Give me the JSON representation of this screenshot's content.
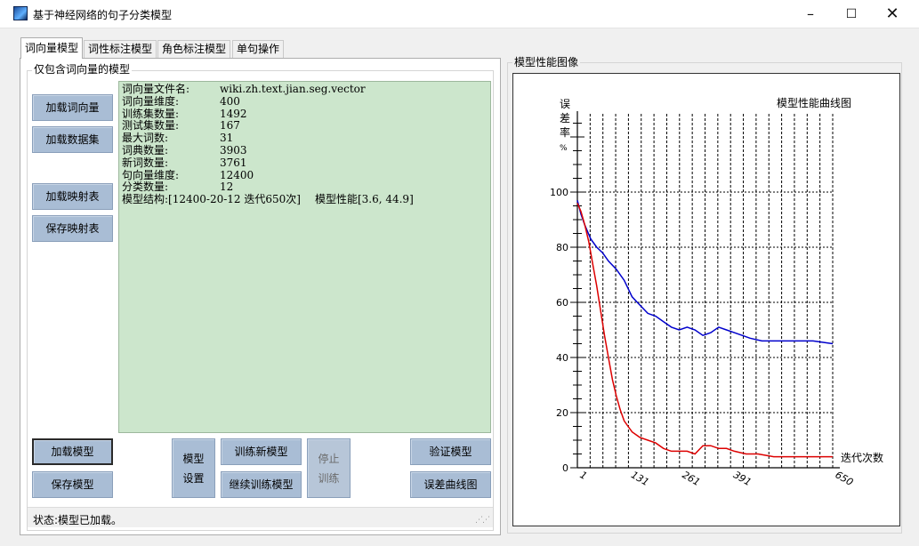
{
  "window": {
    "title": "基于神经网络的句子分类模型"
  },
  "tabs": [
    "词向量模型",
    "词性标注模型",
    "角色标注模型",
    "单句操作"
  ],
  "group": {
    "label": "仅包含词向量的模型"
  },
  "left_buttons": {
    "load_vectors": "加载词向量",
    "load_dataset": "加载数据集",
    "load_map": "加载映射表",
    "save_map": "保存映射表"
  },
  "info": {
    "rows": [
      {
        "k": "词向量文件名:",
        "v": "wiki.zh.text.jian.seg.vector"
      },
      {
        "k": "词向量维度:",
        "v": "400"
      },
      {
        "k": "训练集数量:",
        "v": "1492"
      },
      {
        "k": "测试集数量:",
        "v": "167"
      },
      {
        "k": "最大词数:",
        "v": "31"
      },
      {
        "k": "词典数量:",
        "v": "3903"
      },
      {
        "k": "新词数量:",
        "v": "3761"
      },
      {
        "k": "句向量维度:",
        "v": "12400"
      },
      {
        "k": "分类数量:",
        "v": "12"
      }
    ],
    "structure": "模型结构:[12400-20-12 迭代650次]",
    "performance": "模型性能[3.6, 44.9]"
  },
  "bottom_buttons": {
    "load_model": "加载模型",
    "save_model": "保存模型",
    "model_settings_1": "模型",
    "model_settings_2": "设置",
    "train_new": "训练新模型",
    "continue_train": "继续训练模型",
    "stop_1": "停止",
    "stop_2": "训练",
    "validate": "验证模型",
    "error_curve": "误差曲线图"
  },
  "status": {
    "text": "状态:模型已加载。"
  },
  "perf_group": {
    "label": "模型性能图像"
  },
  "chart_data": {
    "type": "line",
    "title": "模型性能曲线图",
    "ylabel_chars": [
      "误",
      "差",
      "率",
      "%"
    ],
    "xlabel": "迭代次数",
    "ylim": [
      0,
      100
    ],
    "xlim": [
      1,
      650
    ],
    "y_ticks": [
      0,
      20,
      40,
      60,
      80,
      100
    ],
    "x_ticks": [
      1,
      131,
      261,
      391,
      650
    ],
    "x_tick_labels": [
      "1",
      "131",
      "261",
      "391",
      "650"
    ],
    "grid": true,
    "colors": {
      "blue": "#0000cc",
      "red": "#dd0000"
    },
    "series": [
      {
        "color": "#0000cc",
        "x": [
          1,
          10,
          20,
          35,
          50,
          65,
          80,
          100,
          120,
          140,
          160,
          180,
          200,
          220,
          240,
          260,
          280,
          300,
          320,
          340,
          360,
          380,
          400,
          420,
          440,
          470,
          500,
          530,
          560,
          600,
          650
        ],
        "y": [
          97,
          92,
          88,
          83,
          80,
          78,
          75,
          72,
          68,
          62,
          59,
          56,
          55,
          53,
          51,
          50,
          51,
          50,
          48,
          49,
          51,
          50,
          49,
          48,
          47,
          46,
          46,
          46,
          46,
          46,
          45
        ]
      },
      {
        "color": "#dd0000",
        "x": [
          1,
          10,
          20,
          30,
          40,
          50,
          60,
          70,
          80,
          90,
          100,
          110,
          120,
          130,
          140,
          160,
          180,
          200,
          220,
          240,
          260,
          280,
          300,
          320,
          340,
          360,
          380,
          400,
          430,
          460,
          500,
          550,
          600,
          650
        ],
        "y": [
          96,
          93,
          88,
          82,
          74,
          66,
          57,
          48,
          40,
          32,
          26,
          21,
          17,
          15,
          13,
          11,
          10,
          9,
          7,
          6,
          6,
          6,
          5,
          8,
          8,
          7,
          7,
          6,
          5,
          5,
          4,
          4,
          4,
          4
        ]
      }
    ]
  }
}
